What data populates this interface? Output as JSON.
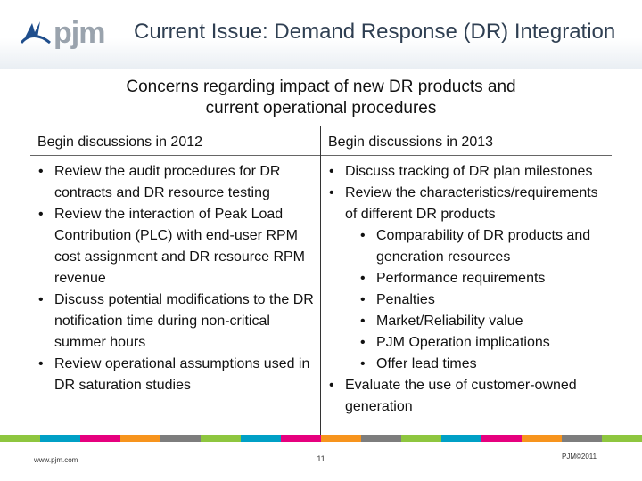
{
  "header": {
    "logo_text": "pjm",
    "title": "Current Issue: Demand Response (DR) Integration"
  },
  "subtitle": {
    "line1": "Concerns regarding impact of new DR products and",
    "line2": "current operational procedures"
  },
  "table": {
    "left": {
      "heading": "Begin discussions in 2012",
      "items": [
        "Review the audit procedures for DR contracts and DR resource testing",
        "Review the interaction of Peak Load Contribution (PLC) with end-user RPM cost assignment and DR resource RPM revenue",
        "Discuss potential modifications to the DR notification time during non-critical summer hours",
        "Review operational assumptions used in DR saturation studies"
      ]
    },
    "right": {
      "heading": "Begin discussions in 2013",
      "items": [
        "Discuss tracking of DR plan milestones",
        "Review the characteristics/requirements of different DR products"
      ],
      "subitems": [
        "Comparability of DR products and generation resources",
        "Performance requirements",
        "Penalties",
        "Market/Reliability value",
        "PJM Operation implications",
        "Offer lead times"
      ],
      "last_item": "Evaluate the use of customer-owned generation"
    }
  },
  "footer": {
    "url": "www.pjm.com",
    "page": "11",
    "copyright": "PJM©2011",
    "stripe_colors": [
      "#8ec63f",
      "#00a0c6",
      "#e6007e",
      "#f7941d",
      "#7d7d7d",
      "#8ec63f",
      "#00a0c6",
      "#e6007e",
      "#f7941d",
      "#7d7d7d",
      "#8ec63f",
      "#00a0c6",
      "#e6007e",
      "#f7941d",
      "#7d7d7d",
      "#8ec63f"
    ]
  }
}
